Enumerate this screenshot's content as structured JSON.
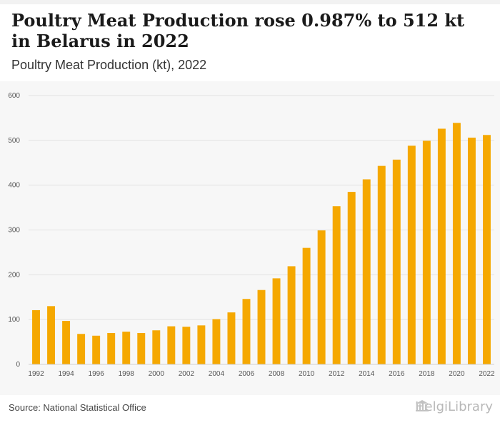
{
  "header": {
    "title": "Poultry Meat Production rose 0.987% to 512 kt in Belarus in 2022",
    "subtitle": "Poultry Meat Production (kt), 2022"
  },
  "footer": {
    "source": "Source: National Statistical Office",
    "brand": "HelgiLibrary",
    "brand_icon": "library-building-icon"
  },
  "colors": {
    "bar": "#f5a800",
    "grid": "#e2e2e2"
  },
  "chart_data": {
    "type": "bar",
    "categories": [
      "1992",
      "1993",
      "1994",
      "1995",
      "1996",
      "1997",
      "1998",
      "1999",
      "2000",
      "2001",
      "2002",
      "2003",
      "2004",
      "2005",
      "2006",
      "2007",
      "2008",
      "2009",
      "2010",
      "2011",
      "2012",
      "2013",
      "2014",
      "2015",
      "2016",
      "2017",
      "2018",
      "2019",
      "2020",
      "2021",
      "2022"
    ],
    "values": [
      121,
      130,
      97,
      68,
      64,
      70,
      73,
      70,
      76,
      85,
      84,
      87,
      101,
      116,
      146,
      166,
      192,
      219,
      260,
      299,
      353,
      385,
      413,
      443,
      457,
      488,
      499,
      526,
      539,
      506,
      512
    ],
    "x_tick_labels": [
      "1992",
      "1994",
      "1996",
      "1998",
      "2000",
      "2002",
      "2004",
      "2006",
      "2008",
      "2010",
      "2012",
      "2014",
      "2016",
      "2018",
      "2020",
      "2022"
    ],
    "y_ticks": [
      0,
      100,
      200,
      300,
      400,
      500,
      600
    ],
    "ylim": [
      0,
      600
    ],
    "grid": true,
    "legend": "none",
    "xlabel": "",
    "ylabel": ""
  }
}
